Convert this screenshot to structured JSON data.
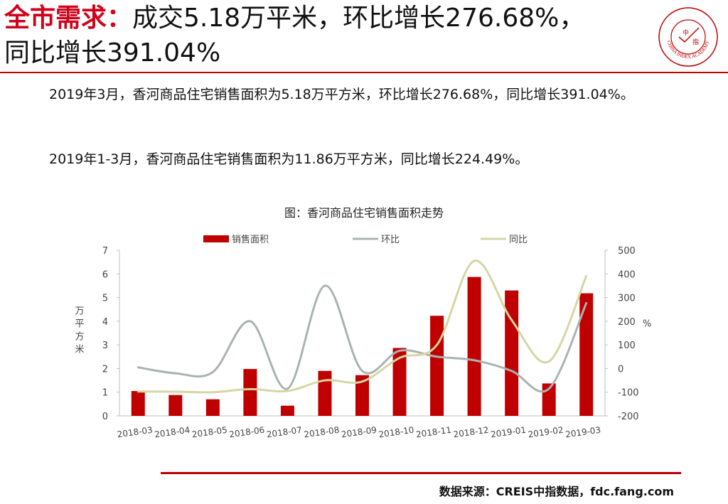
{
  "header": {
    "title_accent": "全市需求：",
    "title_line1_rest": "成交5.18万平米，环比增长276.68%，",
    "title_line2": "同比增长391.04%"
  },
  "logo": {
    "ring_text": "CHINA INDEX ACADEMY",
    "center_chars": [
      "中",
      "指"
    ],
    "color": "#c00000"
  },
  "body": {
    "para1": "2019年3月，香河商品住宅销售面积为5.18万平方米，环比增长276.68%，同比增长391.04%。",
    "para2": "2019年1-3月，香河商品住宅销售面积为11.86万平方米，同比增长224.49%。"
  },
  "chart_data": {
    "type": "bar",
    "title": "图：香河商品住宅销售面积走势",
    "categories": [
      "2018-03",
      "2018-04",
      "2018-05",
      "2018-06",
      "2018-07",
      "2018-08",
      "2018-09",
      "2018-10",
      "2018-11",
      "2018-12",
      "2019-01",
      "2019-02",
      "2019-03"
    ],
    "ylabel": "万平方米",
    "ylim": [
      0,
      7
    ],
    "yticks": [
      0,
      1,
      2,
      3,
      4,
      5,
      6,
      7
    ],
    "y2label": "%",
    "y2lim": [
      -200,
      500
    ],
    "y2ticks": [
      -200,
      -100,
      0,
      100,
      200,
      300,
      400,
      500
    ],
    "legend_position": "top",
    "series": [
      {
        "name": "销售面积",
        "type": "bar",
        "axis": "left",
        "color": "#c00000",
        "values": [
          1.05,
          0.88,
          0.7,
          1.98,
          0.43,
          1.9,
          1.72,
          2.87,
          4.23,
          5.87,
          5.3,
          1.37,
          5.18
        ]
      },
      {
        "name": "环比",
        "type": "line",
        "axis": "right",
        "color": "#a9b3b3",
        "values": [
          5,
          -20,
          -15,
          200,
          -85,
          350,
          -10,
          75,
          50,
          35,
          -10,
          -85,
          276.68
        ]
      },
      {
        "name": "同比",
        "type": "line",
        "axis": "right",
        "color": "#d6d6a4",
        "values": [
          -97,
          -98,
          -100,
          -87,
          -95,
          -50,
          -55,
          45,
          100,
          455,
          205,
          30,
          391.04
        ]
      }
    ]
  },
  "source": "数据来源：CREIS中指数据，fdc.fang.com"
}
